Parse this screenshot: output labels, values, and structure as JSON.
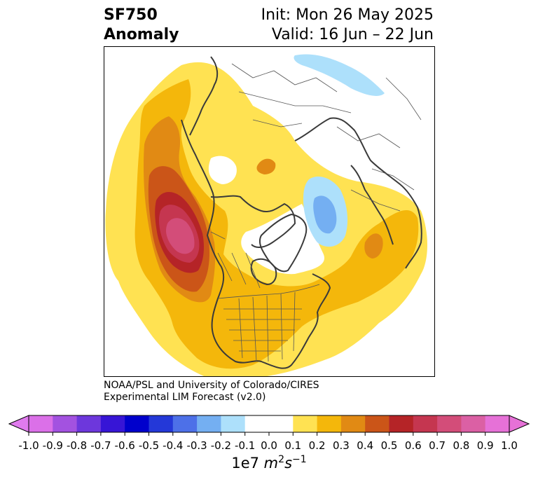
{
  "header": {
    "variable": "SF750",
    "field": "Anomaly",
    "init": "Init: Mon 26 May 2025",
    "valid": "Valid: 16 Jun – 22 Jun"
  },
  "credit": {
    "line1": "NOAA/PSL and University of Colorado/CIRES",
    "line2": "Experimental LIM Forecast (v2.0)"
  },
  "colorbar": {
    "ticks": [
      "-1.0",
      "-0.9",
      "-0.8",
      "-0.7",
      "-0.6",
      "-0.5",
      "-0.4",
      "-0.3",
      "-0.2",
      "-0.1",
      "0.0",
      "0.1",
      "0.2",
      "0.3",
      "0.4",
      "0.5",
      "0.6",
      "0.7",
      "0.8",
      "0.9",
      "1.0"
    ],
    "colors": [
      "#db70e8",
      "#a352e0",
      "#6d37dc",
      "#3715d6",
      "#0000cc",
      "#2438d8",
      "#4d70e8",
      "#74aff2",
      "#ade0fb",
      "#ffffff",
      "#ffffff",
      "#ffe252",
      "#f4b70b",
      "#e18a14",
      "#cb5518",
      "#b52427",
      "#c53650",
      "#d34d79",
      "#db60a4",
      "#e671d7"
    ],
    "under_color": "#e07bee",
    "over_color": "#e671d7",
    "units_prefix": "1e7 ",
    "units_math": "m",
    "units_exp1": "2",
    "units_s": "s",
    "units_exp2": "−1"
  },
  "map": {
    "projection": "north-polar-stereographic",
    "shading": {
      "pos_01": "#ffe252",
      "pos_02": "#f4b70b",
      "pos_03": "#e18a14",
      "pos_04": "#cb5518",
      "pos_05": "#b52427",
      "pos_06": "#c53650",
      "pos_07": "#d34d79",
      "neg_01": "#ade0fb",
      "neg_02": "#74aff2"
    },
    "coastline_color": "#333333",
    "border_color": "#444444"
  }
}
